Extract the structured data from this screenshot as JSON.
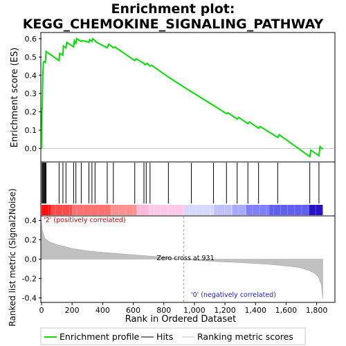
{
  "title_line1": "Enrichment plot:",
  "title_line2": "KEGG_CHEMOKINE_SIGNALING_PATHWAY",
  "colors": {
    "es_line": "#00e000",
    "metric_fill": "#c0c0c0",
    "pos_text": "#cc0000",
    "neg_text": "#2020cc"
  },
  "chart_data": [
    {
      "type": "line",
      "panel": "enrichment-score",
      "ylabel": "Enrichment score (ES)",
      "ylim": [
        -0.07,
        0.63
      ],
      "xlim": [
        0,
        1915
      ],
      "yticks": [
        0.0,
        0.1,
        0.2,
        0.3,
        0.4,
        0.5,
        0.6
      ],
      "ytick_labels": [
        "0.0",
        "0.1",
        "0.2",
        "0.3",
        "0.4",
        "0.5",
        "0.6"
      ],
      "series": [
        {
          "name": "Enrichment profile",
          "x": [
            0,
            3,
            5,
            8,
            12,
            15,
            20,
            25,
            30,
            115,
            118,
            140,
            143,
            160,
            165,
            210,
            215,
            225,
            230,
            260,
            270,
            310,
            315,
            330,
            335,
            350,
            360,
            430,
            440,
            470,
            480,
            610,
            620,
            670,
            675,
            685,
            690,
            710,
            720,
            830,
            840,
            980,
            990,
            1125,
            1135,
            1210,
            1220,
            1280,
            1290,
            1350,
            1360,
            1420,
            1430,
            1545,
            1555,
            1755,
            1762,
            1815,
            1822,
            1840
          ],
          "y": [
            0.0,
            0.22,
            0.22,
            0.4,
            0.47,
            0.475,
            0.475,
            0.47,
            0.53,
            0.48,
            0.52,
            0.51,
            0.56,
            0.55,
            0.58,
            0.555,
            0.59,
            0.575,
            0.6,
            0.585,
            0.59,
            0.58,
            0.595,
            0.585,
            0.6,
            0.59,
            0.58,
            0.55,
            0.57,
            0.55,
            0.555,
            0.48,
            0.49,
            0.465,
            0.458,
            0.46,
            0.465,
            0.45,
            0.455,
            0.39,
            0.385,
            0.31,
            0.305,
            0.235,
            0.23,
            0.19,
            0.195,
            0.16,
            0.17,
            0.135,
            0.145,
            0.11,
            0.12,
            0.06,
            0.075,
            -0.045,
            -0.01,
            -0.04,
            0.01,
            -0.005
          ]
        }
      ]
    },
    {
      "type": "scatter",
      "panel": "hits",
      "series": [
        {
          "name": "Hits",
          "x": [
            3,
            8,
            12,
            15,
            20,
            25,
            30,
            115,
            140,
            160,
            210,
            225,
            260,
            310,
            330,
            350,
            430,
            470,
            610,
            670,
            685,
            710,
            830,
            980,
            1125,
            1210,
            1280,
            1350,
            1420,
            1545,
            1755,
            1815
          ]
        }
      ],
      "ranked_list_bar": {
        "n_genes": 1840,
        "zero_cross": 931,
        "positive_side": "red",
        "negative_side": "blue"
      }
    },
    {
      "type": "area",
      "panel": "ranked-metric",
      "xlabel": "Rank in Ordered Dataset",
      "ylabel": "Ranked list metric (Signal2Noise)",
      "ylim": [
        -0.44,
        0.44
      ],
      "xlim": [
        0,
        1915
      ],
      "yticks": [
        -0.4,
        -0.2,
        0.0,
        0.2,
        0.4
      ],
      "ytick_labels": [
        "-0.4",
        "-0.2",
        "0.0",
        "0.2",
        "0.4"
      ],
      "xticks": [
        0,
        200,
        400,
        600,
        800,
        1000,
        1200,
        1400,
        1600,
        1800
      ],
      "xtick_labels": [
        "0",
        "200",
        "400",
        "600",
        "800",
        "1,000",
        "1,200",
        "1,400",
        "1,600",
        "1,800"
      ],
      "series": [
        {
          "name": "Ranking metric scores",
          "x": [
            0,
            5,
            20,
            50,
            100,
            150,
            200,
            300,
            400,
            500,
            600,
            700,
            800,
            931,
            1000,
            1100,
            1200,
            1300,
            1400,
            1500,
            1600,
            1680,
            1740,
            1780,
            1810,
            1830,
            1840
          ],
          "y": [
            0.38,
            0.3,
            0.22,
            0.18,
            0.15,
            0.13,
            0.11,
            0.085,
            0.07,
            0.058,
            0.045,
            0.033,
            0.02,
            0.0,
            -0.012,
            -0.02,
            -0.028,
            -0.035,
            -0.045,
            -0.055,
            -0.07,
            -0.085,
            -0.11,
            -0.14,
            -0.18,
            -0.26,
            -0.41
          ]
        }
      ],
      "annotations": {
        "zero_cross": "Zero cross at 931",
        "positive": "'2' (positively correlated)",
        "negative": "'0' (negatively correlated)"
      }
    }
  ],
  "legend": {
    "profile": "Enrichment profile",
    "hits": "Hits",
    "metric": "Ranking metric scores"
  }
}
